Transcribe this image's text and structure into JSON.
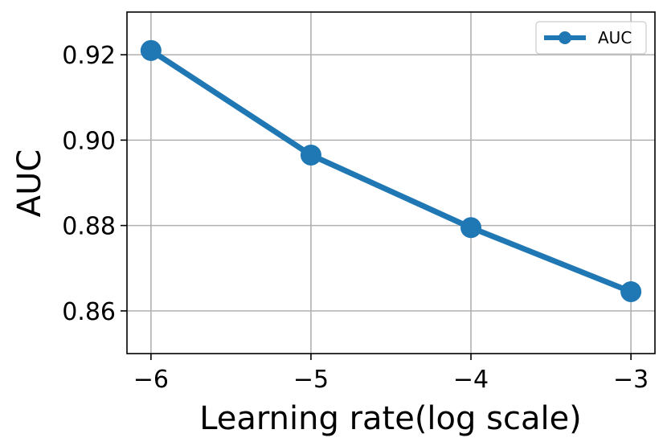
{
  "chart_data": {
    "type": "line",
    "title": "",
    "xlabel": "Learning rate(log scale)",
    "ylabel": "AUC",
    "x": [
      -6,
      -5,
      -4,
      -3
    ],
    "xticks": [
      -6,
      -5,
      -4,
      -3
    ],
    "xtick_labels": [
      "−6",
      "−5",
      "−4",
      "−3"
    ],
    "xlim": [
      -6.15,
      -2.85
    ],
    "yticks": [
      0.86,
      0.88,
      0.9,
      0.92
    ],
    "ytick_labels": [
      "0.86",
      "0.88",
      "0.90",
      "0.92"
    ],
    "ylim": [
      0.85,
      0.93
    ],
    "grid": true,
    "legend_position": "top-right",
    "series": [
      {
        "name": "AUC",
        "values": [
          0.921,
          0.8965,
          0.8795,
          0.8645
        ],
        "color": "#1f77b4",
        "marker": "circle"
      }
    ]
  }
}
